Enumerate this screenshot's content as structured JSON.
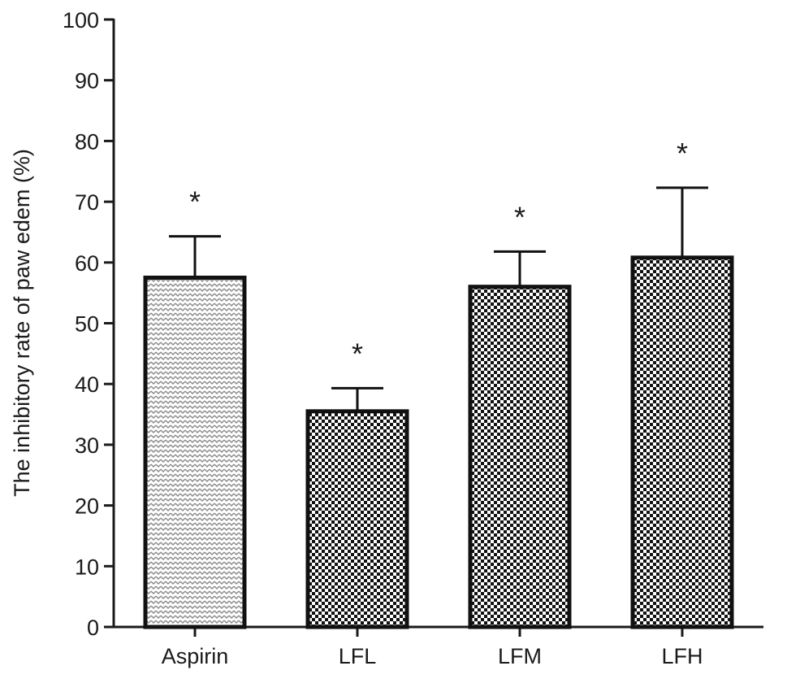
{
  "chart_data": {
    "type": "bar",
    "title": "",
    "xlabel": "",
    "ylabel": "The inhibitory rate of paw edem (%)",
    "ylim": [
      0,
      100
    ],
    "yticks": [
      0,
      10,
      20,
      30,
      40,
      50,
      60,
      70,
      80,
      90,
      100
    ],
    "categories": [
      "Aspirin",
      "LFL",
      "LFM",
      "LFH"
    ],
    "values": [
      57.5,
      35.5,
      56,
      60.8
    ],
    "error_upper": [
      64.3,
      39.3,
      61.8,
      72.3
    ],
    "annotations": [
      "*",
      "*",
      "*",
      "*"
    ],
    "grid": false,
    "legend": "none",
    "colors": {
      "bar_edge": "#111111",
      "axis": "#1a1a1a",
      "fill_light": "#d9d9d9",
      "fill_dark": "#111111"
    }
  }
}
